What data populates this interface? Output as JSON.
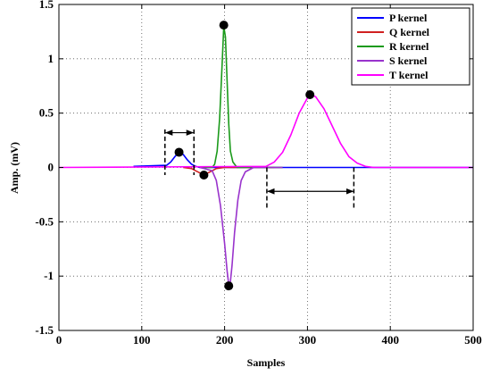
{
  "chart_data": {
    "type": "line",
    "xlabel": "Samples",
    "ylabel": "Amp. (mV)",
    "xlim": [
      0,
      500
    ],
    "ylim": [
      -1.5,
      1.5
    ],
    "xticks": [
      0,
      100,
      200,
      300,
      400,
      500
    ],
    "yticks": [
      -1.5,
      -1,
      -0.5,
      0,
      0.5,
      1,
      1.5
    ],
    "xtick_labels": [
      "0",
      "100",
      "200",
      "300",
      "400",
      "500"
    ],
    "ytick_labels": [
      "-1.5",
      "-1",
      "-0.5",
      "0",
      "0.5",
      "1",
      "1.5"
    ],
    "grid": true,
    "legend_position": "top-right",
    "series": [
      {
        "name": "P kernel",
        "color": "#0000ff",
        "x": [
          90,
          130,
          135,
          140,
          145,
          150,
          155,
          160,
          165,
          170,
          175,
          180,
          190,
          500
        ],
        "y": [
          0.01,
          0.02,
          0.05,
          0.1,
          0.14,
          0.12,
          0.07,
          0.03,
          0.01,
          0,
          0,
          0,
          0,
          0
        ]
      },
      {
        "name": "Q kernel",
        "color": "#d02020",
        "x": [
          150,
          160,
          165,
          170,
          175,
          180,
          185,
          190,
          200,
          260
        ],
        "y": [
          0,
          -0.01,
          -0.03,
          -0.05,
          -0.07,
          -0.05,
          -0.03,
          -0.01,
          0,
          0
        ]
      },
      {
        "name": "R kernel",
        "color": "#1a9a1a",
        "x": [
          170,
          185,
          188,
          191,
          194,
          197,
          199,
          201,
          203,
          205,
          207,
          210,
          215,
          230,
          270
        ],
        "y": [
          0,
          0,
          0.03,
          0.15,
          0.45,
          0.95,
          1.3,
          1.2,
          0.8,
          0.4,
          0.15,
          0.05,
          0,
          0,
          0
        ]
      },
      {
        "name": "S kernel",
        "color": "#9933cc",
        "x": [
          170,
          185,
          190,
          195,
          200,
          203,
          205,
          207,
          209,
          212,
          216,
          220,
          225,
          235,
          270
        ],
        "y": [
          0,
          -0.03,
          -0.12,
          -0.35,
          -0.7,
          -0.95,
          -1.08,
          -1.05,
          -0.9,
          -0.6,
          -0.3,
          -0.12,
          -0.04,
          0,
          0
        ]
      },
      {
        "name": "T kernel",
        "color": "#ff00ff",
        "x": [
          0,
          250,
          260,
          270,
          280,
          290,
          300,
          305,
          310,
          320,
          330,
          340,
          350,
          360,
          370,
          380,
          500
        ],
        "y": [
          0,
          0.01,
          0.05,
          0.14,
          0.3,
          0.5,
          0.64,
          0.67,
          0.65,
          0.54,
          0.38,
          0.22,
          0.1,
          0.04,
          0.01,
          0,
          0
        ]
      }
    ],
    "markers": [
      {
        "x": 145,
        "y": 0.14
      },
      {
        "x": 175,
        "y": -0.07
      },
      {
        "x": 199,
        "y": 1.31
      },
      {
        "x": 205,
        "y": -1.09
      },
      {
        "x": 303,
        "y": 0.67
      }
    ],
    "interval_annotations": [
      {
        "x_start": 128,
        "x_end": 163,
        "y_top": 0.35,
        "y_bottom": -0.07,
        "arrow_y": 0.32
      },
      {
        "x_start": 251,
        "x_end": 356,
        "y_top": 0.0,
        "y_bottom": -0.38,
        "arrow_y": -0.22
      }
    ]
  }
}
